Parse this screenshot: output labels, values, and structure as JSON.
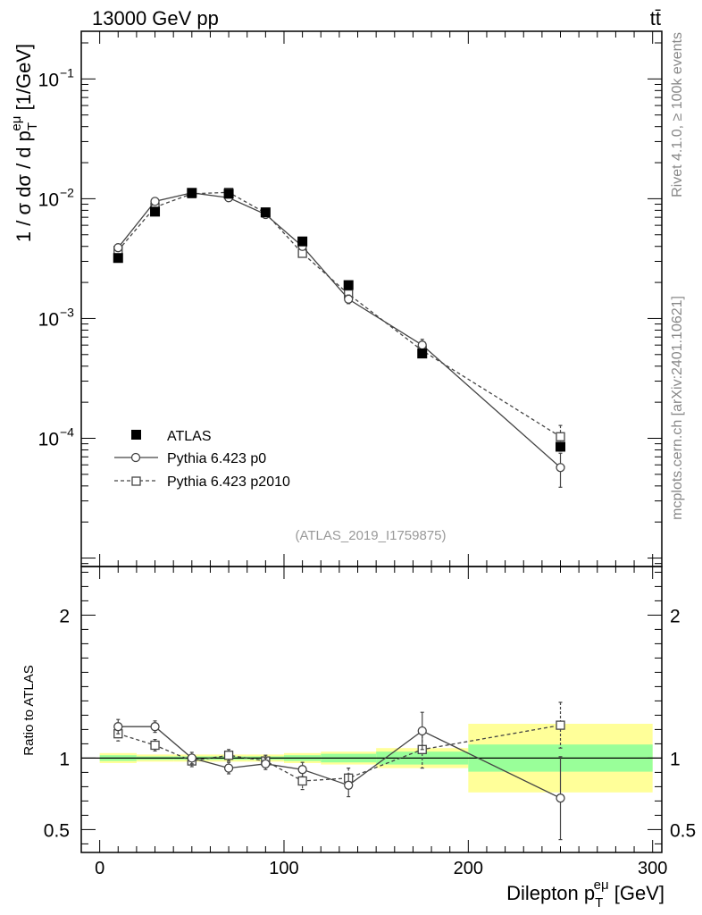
{
  "header": {
    "collision": "13000 GeV pp",
    "process": "tt̄"
  },
  "side_text": {
    "rivet": "Rivet 4.1.0, ≥ 100k events",
    "mcplots": "mcplots.cern.ch [arXiv:2401.10621]"
  },
  "analysis_id": "(ATLAS_2019_I1759875)",
  "chart_data": [
    {
      "type": "scatter",
      "panel": "main",
      "title": "",
      "ylabel": "1 / σ  dσ / d p_T^{eμ} [1/GeV]",
      "yscale": "log",
      "xlim": [
        -10,
        305
      ],
      "ylim": [
        8.5e-06,
        0.25
      ],
      "y_ticks": [
        {
          "value": 0.1,
          "base": "10",
          "exp": "−1"
        },
        {
          "value": 0.01,
          "base": "10",
          "exp": "−2"
        },
        {
          "value": 0.001,
          "base": "10",
          "exp": "−3"
        },
        {
          "value": 0.0001,
          "base": "10",
          "exp": "−4"
        }
      ],
      "legend": [
        "ATLAS",
        "Pythia 6.423 p0",
        "Pythia 6.423 p2010"
      ],
      "legend_position": "lower-left",
      "series": [
        {
          "name": "ATLAS",
          "marker": "filled-square",
          "x": [
            10,
            30,
            50,
            70,
            90,
            110,
            135,
            175,
            250
          ],
          "y": [
            0.0032,
            0.0078,
            0.0112,
            0.011,
            0.0077,
            0.0044,
            0.0019,
            0.00051,
            8.5e-05
          ]
        },
        {
          "name": "Pythia 6.423 p0",
          "marker": "open-circle",
          "line": "solid",
          "x": [
            10,
            30,
            50,
            70,
            90,
            110,
            135,
            175,
            250
          ],
          "y": [
            0.0039,
            0.0095,
            0.0112,
            0.0102,
            0.0074,
            0.004,
            0.00145,
            0.0006,
            5.7e-05
          ],
          "yerr": [
            0.0001,
            0.0002,
            0.0002,
            0.0002,
            0.0002,
            0.0002,
            0.00012,
            7e-05,
            1.8e-05
          ]
        },
        {
          "name": "Pythia 6.423 p2010",
          "marker": "open-square",
          "line": "dashed",
          "x": [
            10,
            30,
            50,
            70,
            90,
            110,
            135,
            175,
            250
          ],
          "y": [
            0.0037,
            0.0085,
            0.011,
            0.0113,
            0.0076,
            0.0035,
            0.0016,
            0.00054,
            0.000103
          ],
          "yerr": [
            0.0001,
            0.0002,
            0.0002,
            0.0002,
            0.0002,
            0.0002,
            0.00012,
            7e-05,
            2.5e-05
          ]
        }
      ]
    },
    {
      "type": "scatter",
      "panel": "ratio",
      "ylabel": "Ratio to ATLAS",
      "xlabel": "Dilepton p_T^{eμ} [GeV]",
      "xlim": [
        -10,
        305
      ],
      "ylim": [
        0.34,
        2.34
      ],
      "x_ticks": [
        "0",
        "100",
        "200",
        "300"
      ],
      "y_ticks": [
        "0.5",
        "1",
        "2"
      ],
      "reference_line": 1,
      "uncertainty_bands": {
        "bins": [
          [
            0,
            20
          ],
          [
            20,
            40
          ],
          [
            40,
            60
          ],
          [
            60,
            80
          ],
          [
            80,
            100
          ],
          [
            100,
            120
          ],
          [
            120,
            150
          ],
          [
            150,
            200
          ],
          [
            200,
            300
          ]
        ],
        "outer": [
          0.035,
          0.025,
          0.025,
          0.025,
          0.025,
          0.035,
          0.045,
          0.07,
          0.24
        ],
        "inner": [
          0.02,
          0.012,
          0.012,
          0.012,
          0.012,
          0.02,
          0.03,
          0.045,
          0.095
        ],
        "outer_color": "#ffff99",
        "inner_color": "#99ff99"
      },
      "series": [
        {
          "name": "Pythia 6.423 p0",
          "marker": "open-circle",
          "line": "solid",
          "x": [
            10,
            30,
            50,
            70,
            90,
            110,
            135,
            175,
            250
          ],
          "y": [
            1.22,
            1.22,
            1.0,
            0.93,
            0.96,
            0.92,
            0.81,
            1.19,
            0.72
          ],
          "yerr": [
            0.05,
            0.04,
            0.04,
            0.04,
            0.04,
            0.05,
            0.08,
            0.13,
            0.29
          ]
        },
        {
          "name": "Pythia 6.423 p2010",
          "marker": "open-square",
          "line": "dashed",
          "x": [
            10,
            30,
            50,
            70,
            90,
            110,
            135,
            175,
            250
          ],
          "y": [
            1.17,
            1.09,
            0.98,
            1.02,
            0.98,
            0.84,
            0.86,
            1.06,
            1.23
          ],
          "yerr": [
            0.05,
            0.04,
            0.04,
            0.04,
            0.04,
            0.06,
            0.07,
            0.13,
            0.16
          ]
        }
      ]
    }
  ]
}
